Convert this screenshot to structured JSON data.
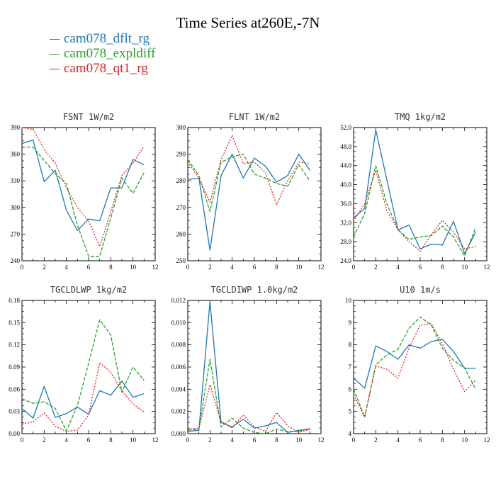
{
  "title": "Time Series at260E,-7N",
  "legend": [
    {
      "label": "cam078_dflt_rg",
      "color": "#1f77b4",
      "dash": ""
    },
    {
      "label": "cam078_expldiff",
      "color": "#2ca02c",
      "dash": "5,2"
    },
    {
      "label": "cam078_qt1_rg",
      "color": "#d62728",
      "dash": "2,2"
    }
  ],
  "chart_data": [
    {
      "type": "line",
      "title": "FSNT  1W/m2",
      "xlim": [
        0,
        12
      ],
      "ylim": [
        240,
        390
      ],
      "xticks": [
        0,
        2,
        4,
        6,
        8,
        10,
        12
      ],
      "yticks": [
        "240",
        "270",
        "300",
        "330",
        "360",
        "390"
      ],
      "x": [
        0,
        1,
        2,
        3,
        4,
        5,
        6,
        7,
        8,
        9,
        10,
        11
      ],
      "series": [
        {
          "name": "cam078_dflt_rg",
          "values": [
            372,
            376,
            329,
            342,
            297,
            274,
            287,
            285,
            322,
            322,
            354,
            348
          ]
        },
        {
          "name": "cam078_expldiff",
          "values": [
            368,
            368,
            353,
            338,
            327,
            280,
            245,
            245,
            288,
            333,
            316,
            339
          ]
        },
        {
          "name": "cam078_qt1_rg",
          "values": [
            390,
            388,
            365,
            350,
            322,
            300,
            285,
            256,
            295,
            336,
            350,
            369
          ]
        }
      ]
    },
    {
      "type": "line",
      "title": "FLNT  1W/m2",
      "xlim": [
        0,
        12
      ],
      "ylim": [
        250,
        300
      ],
      "xticks": [
        0,
        2,
        4,
        6,
        8,
        10,
        12
      ],
      "yticks": [
        "250",
        "260",
        "270",
        "280",
        "290",
        "300"
      ],
      "x": [
        0,
        1,
        2,
        3,
        4,
        5,
        6,
        7,
        8,
        9,
        10,
        11
      ],
      "series": [
        {
          "name": "cam078_dflt_rg",
          "values": [
            280.5,
            281,
            254,
            282,
            290,
            281,
            288.5,
            285.5,
            279.5,
            282,
            290,
            284
          ]
        },
        {
          "name": "cam078_expldiff",
          "values": [
            288,
            282,
            268.5,
            287,
            289,
            290,
            282.5,
            281,
            279,
            278,
            286,
            280
          ]
        },
        {
          "name": "cam078_qt1_rg",
          "values": [
            287,
            281,
            272,
            288,
            297,
            286.5,
            287,
            283,
            271,
            280,
            287,
            286.5
          ]
        }
      ]
    },
    {
      "type": "line",
      "title": "TMQ  1kg/m2",
      "xlim": [
        0,
        12
      ],
      "ylim": [
        24,
        52
      ],
      "xticks": [
        0,
        2,
        4,
        6,
        8,
        10,
        12
      ],
      "yticks": [
        "24.0",
        "28.0",
        "32.0",
        "36.0",
        "40.0",
        "44.0",
        "48.0",
        "52.0"
      ],
      "x": [
        0,
        1,
        2,
        3,
        4,
        5,
        6,
        7,
        8,
        9,
        10,
        11
      ],
      "series": [
        {
          "name": "cam078_dflt_rg",
          "values": [
            33,
            35,
            51.5,
            41,
            30.5,
            31.5,
            26.5,
            27.5,
            27.3,
            32.3,
            25.5,
            30
          ]
        },
        {
          "name": "cam078_expldiff",
          "values": [
            29,
            34,
            44,
            36,
            30.5,
            28.5,
            29,
            29.3,
            31.3,
            29,
            25,
            31
          ]
        },
        {
          "name": "cam078_qt1_rg",
          "values": [
            32.3,
            36,
            43,
            34.5,
            30.5,
            28,
            26,
            29.5,
            32.5,
            30,
            26.5,
            27
          ]
        }
      ]
    },
    {
      "type": "line",
      "title": "TGCLDLWP  1kg/m2",
      "xlim": [
        0,
        12
      ],
      "ylim": [
        0,
        0.18
      ],
      "xticks": [
        0,
        2,
        4,
        6,
        8,
        10,
        12
      ],
      "yticks": [
        "0.00",
        "0.03",
        "0.06",
        "0.09",
        "0.12",
        "0.15",
        "0.18"
      ],
      "x": [
        0,
        1,
        2,
        3,
        4,
        5,
        6,
        7,
        8,
        9,
        10,
        11
      ],
      "series": [
        {
          "name": "cam078_dflt_rg",
          "values": [
            0.034,
            0.021,
            0.064,
            0.022,
            0.027,
            0.036,
            0.026,
            0.058,
            0.052,
            0.071,
            0.049,
            0.054
          ]
        },
        {
          "name": "cam078_expldiff",
          "values": [
            0.047,
            0.041,
            0.043,
            0.034,
            0.004,
            0.038,
            0.095,
            0.154,
            0.133,
            0.056,
            0.09,
            0.072
          ]
        },
        {
          "name": "cam078_qt1_rg",
          "values": [
            0.013,
            0.016,
            0.028,
            0.01,
            0.003,
            0.005,
            0.025,
            0.096,
            0.083,
            0.058,
            0.04,
            0.029
          ]
        }
      ]
    },
    {
      "type": "line",
      "title": "TGCLDIWP  1.0kg/m2",
      "xlim": [
        0,
        12
      ],
      "ylim": [
        0,
        0.012
      ],
      "xticks": [
        0,
        2,
        4,
        6,
        8,
        10,
        12
      ],
      "yticks": [
        "0.000",
        "0.002",
        "0.004",
        "0.006",
        "0.008",
        "0.010",
        "0.012"
      ],
      "x": [
        0,
        1,
        2,
        3,
        4,
        5,
        6,
        7,
        8,
        9,
        10,
        11
      ],
      "series": [
        {
          "name": "cam078_dflt_rg",
          "values": [
            0.0002,
            0.0003,
            0.0119,
            0.001,
            0.0006,
            0.0013,
            0.0005,
            0.0007,
            0.001,
            0.0001,
            0.0003,
            0.0004
          ]
        },
        {
          "name": "cam078_expldiff",
          "values": [
            0.0003,
            0.0004,
            0.0067,
            0.0006,
            0.0014,
            0.0005,
            0.0001,
            0.0,
            0.0004,
            0.0002,
            0.0002,
            0.0005
          ]
        },
        {
          "name": "cam078_qt1_rg",
          "values": [
            0.0004,
            0.0005,
            0.0044,
            0.0011,
            0.0005,
            0.0017,
            0.0006,
            0.0002,
            0.0019,
            0.0007,
            0.0001,
            0.0004
          ]
        }
      ]
    },
    {
      "type": "line",
      "title": "U10  1m/s",
      "xlim": [
        0,
        12
      ],
      "ylim": [
        4,
        10
      ],
      "xticks": [
        0,
        2,
        4,
        6,
        8,
        10,
        12
      ],
      "yticks": [
        "4",
        "5",
        "6",
        "7",
        "8",
        "9",
        "10"
      ],
      "x": [
        0,
        1,
        2,
        3,
        4,
        5,
        6,
        7,
        8,
        9,
        10,
        11
      ],
      "series": [
        {
          "name": "cam078_dflt_rg",
          "values": [
            6.5,
            6.05,
            7.95,
            7.7,
            7.35,
            8.0,
            7.85,
            8.15,
            8.25,
            7.7,
            6.95,
            6.95
          ]
        },
        {
          "name": "cam078_expldiff",
          "values": [
            6.0,
            4.75,
            7.1,
            7.55,
            7.8,
            8.75,
            9.25,
            8.9,
            7.85,
            7.3,
            6.95,
            6.0
          ]
        },
        {
          "name": "cam078_qt1_rg",
          "values": [
            5.75,
            4.75,
            7.05,
            6.9,
            6.5,
            7.85,
            8.9,
            8.95,
            8.05,
            6.9,
            5.9,
            6.4
          ]
        }
      ]
    }
  ]
}
